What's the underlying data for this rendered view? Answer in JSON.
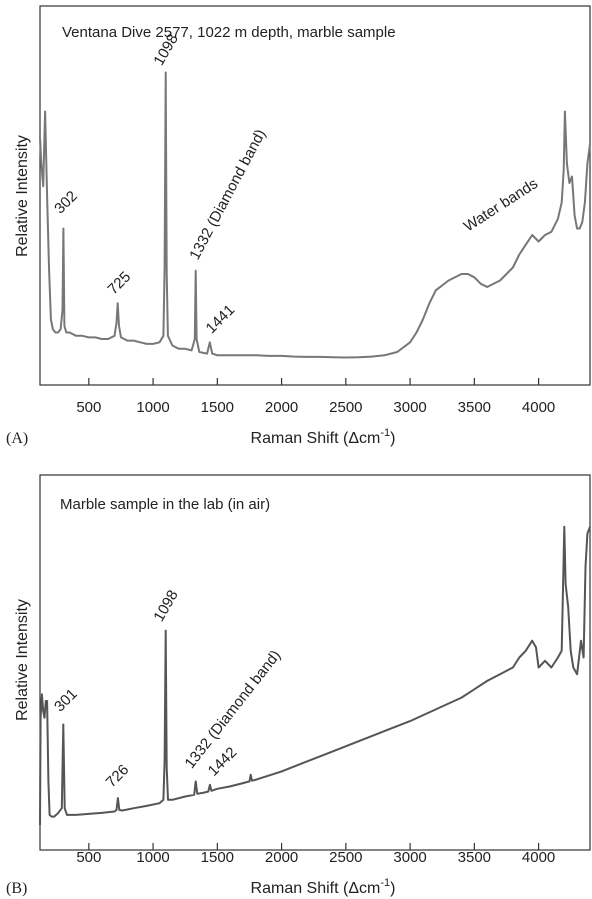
{
  "figure": {
    "panels": [
      {
        "letter": "(A)",
        "title": "Ventana Dive 2577, 1022 m depth, marble sample",
        "ylabel": "Relative Intensity",
        "xlabel_main": "Raman Shift (Δcm",
        "xlabel_sup": "-1",
        "xlabel_close": ")"
      },
      {
        "letter": "(B)",
        "title": "Marble sample in the lab (in air)",
        "ylabel": "Relative Intensity",
        "xlabel_main": "Raman Shift (Δcm",
        "xlabel_sup": "-1",
        "xlabel_close": ")"
      }
    ]
  },
  "chart_data": [
    {
      "type": "line",
      "title": "Ventana Dive 2577, 1022 m depth, marble sample",
      "xlabel": "Raman Shift (Δcm-1)",
      "ylabel": "Relative Intensity",
      "xlim": [
        120,
        4400
      ],
      "ylim": [
        0,
        100
      ],
      "y_ticks_shown": false,
      "grid": false,
      "line_color": "#777777",
      "x_ticks": [
        500,
        1000,
        1500,
        2000,
        2500,
        3000,
        3500,
        4000
      ],
      "series": [
        {
          "x": [
            120,
            130,
            145,
            160,
            175,
            190,
            205,
            220,
            240,
            260,
            280,
            295,
            302,
            310,
            325,
            350,
            400,
            450,
            500,
            550,
            600,
            650,
            700,
            715,
            725,
            735,
            750,
            800,
            850,
            900,
            950,
            1000,
            1050,
            1080,
            1090,
            1098,
            1106,
            1115,
            1150,
            1200,
            1250,
            1300,
            1325,
            1332,
            1339,
            1360,
            1420,
            1441,
            1460,
            1500,
            1600,
            1700,
            1800,
            1900,
            2000,
            2100,
            2200,
            2300,
            2400,
            2500,
            2600,
            2700,
            2800,
            2900,
            3000,
            3050,
            3100,
            3150,
            3200,
            3300,
            3400,
            3450,
            3500,
            3550,
            3600,
            3700,
            3800,
            3850,
            3900,
            3950,
            4000,
            4050,
            4100,
            4150,
            4180,
            4195,
            4205,
            4220,
            4240,
            4260,
            4280,
            4300,
            4320,
            4340,
            4360,
            4380,
            4400
          ],
          "y": [
            70,
            62,
            55,
            78,
            52,
            30,
            14,
            11,
            10,
            10,
            11,
            17,
            42,
            12,
            10,
            10,
            9,
            9,
            8.5,
            8.5,
            8,
            8,
            9,
            13,
            19,
            12,
            8.5,
            7.5,
            7.5,
            7,
            6.5,
            6.5,
            7,
            9,
            30,
            90,
            28,
            9,
            6,
            5,
            5,
            4.5,
            8,
            29,
            8,
            4,
            3.5,
            7,
            3.5,
            3,
            3,
            3,
            3,
            2.8,
            2.8,
            2.6,
            2.5,
            2.5,
            2.4,
            2.3,
            2.4,
            2.6,
            3,
            4,
            7,
            10,
            14,
            19,
            23,
            26,
            28,
            28,
            27,
            25,
            24,
            26,
            30,
            34,
            37,
            40,
            38,
            40,
            41,
            45,
            50,
            60,
            78,
            62,
            56,
            58,
            46,
            42,
            42,
            44,
            50,
            62,
            68
          ]
        }
      ],
      "annotations": [
        {
          "label": "302",
          "x": 302
        },
        {
          "label": "725",
          "x": 725
        },
        {
          "label": "1098",
          "x": 1098
        },
        {
          "label": "1332 (Diamond band)",
          "x": 1332
        },
        {
          "label": "1441",
          "x": 1441
        },
        {
          "label": "Water bands",
          "x": 3450
        }
      ]
    },
    {
      "type": "line",
      "title": "Marble sample in the lab (in air)",
      "xlabel": "Raman Shift (Δcm-1)",
      "ylabel": "Relative Intensity",
      "xlim": [
        120,
        4400
      ],
      "ylim": [
        0,
        100
      ],
      "y_ticks_shown": false,
      "grid": false,
      "line_color": "#555555",
      "x_ticks": [
        500,
        1000,
        1500,
        2000,
        2500,
        3000,
        3500,
        4000
      ],
      "series": [
        {
          "x": [
            120,
            125,
            135,
            145,
            155,
            165,
            175,
            185,
            195,
            210,
            230,
            260,
            290,
            301,
            312,
            330,
            400,
            500,
            600,
            700,
            715,
            726,
            737,
            760,
            850,
            950,
            1050,
            1080,
            1090,
            1098,
            1106,
            1116,
            1150,
            1250,
            1320,
            1332,
            1344,
            1400,
            1430,
            1442,
            1454,
            1500,
            1600,
            1700,
            1750,
            1760,
            1770,
            1800,
            2000,
            2200,
            2400,
            2600,
            2800,
            3000,
            3200,
            3400,
            3500,
            3600,
            3700,
            3800,
            3850,
            3900,
            3950,
            3980,
            4000,
            4050,
            4100,
            4150,
            4180,
            4200,
            4210,
            4230,
            4250,
            4270,
            4300,
            4330,
            4350,
            4365,
            4380,
            4400
          ],
          "y": [
            3,
            35,
            42,
            37,
            35,
            40,
            40,
            16,
            6,
            5.5,
            5.5,
            6.5,
            8,
            33,
            8,
            6,
            6,
            6.3,
            6.6,
            7,
            7.5,
            11,
            7.5,
            7.3,
            8,
            8.7,
            9.5,
            10.5,
            22,
            61,
            20,
            10.5,
            10.5,
            11.5,
            12,
            16,
            12.3,
            12.7,
            13,
            15,
            13.2,
            13.8,
            14.5,
            15.5,
            16,
            18,
            16.2,
            16.5,
            19,
            22,
            25,
            28,
            31,
            34,
            37.5,
            41,
            43.5,
            46,
            48,
            50,
            53,
            55,
            58,
            56,
            50,
            52,
            50,
            53,
            55,
            92,
            75,
            68,
            55,
            50,
            48,
            58,
            53,
            80,
            90,
            92
          ]
        }
      ],
      "annotations": [
        {
          "label": "301",
          "x": 301
        },
        {
          "label": "726",
          "x": 726
        },
        {
          "label": "1098",
          "x": 1098
        },
        {
          "label": "1332 (Diamond band)",
          "x": 1332
        },
        {
          "label": "1442",
          "x": 1442
        }
      ]
    }
  ]
}
